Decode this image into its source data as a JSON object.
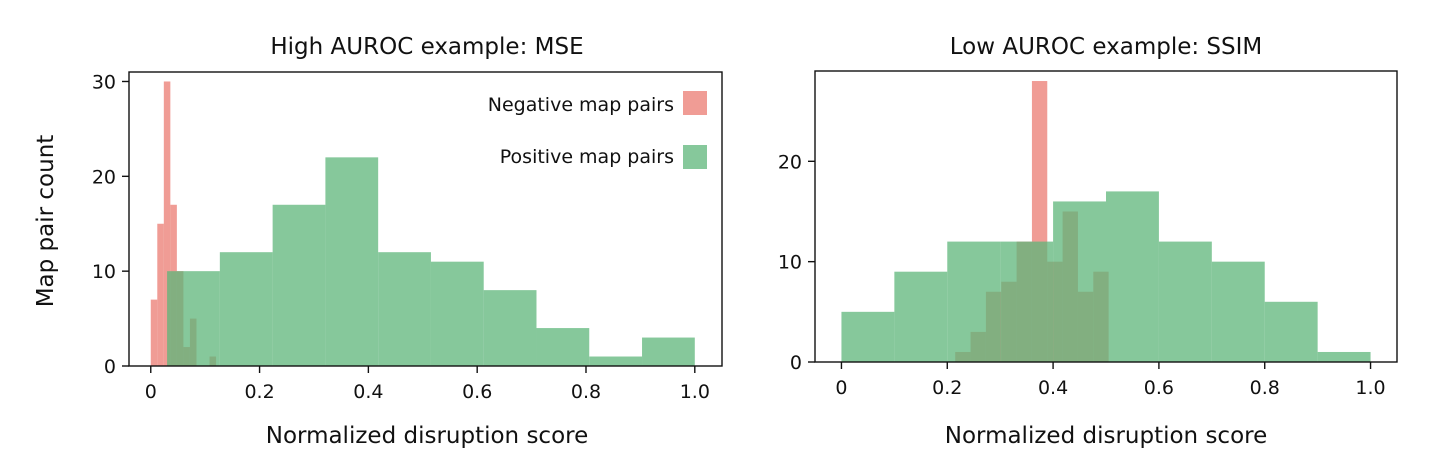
{
  "colors": {
    "negative": "#EB7B72",
    "positive": "#5DB57A"
  },
  "chart_data": [
    {
      "type": "histogram",
      "title": "High AUROC example: MSE",
      "xlabel": "Normalized disruption score",
      "ylabel": "Map pair count",
      "xlim": [
        -0.04,
        1.05
      ],
      "ylim": [
        0,
        31
      ],
      "xticks": [
        0,
        0.2,
        0.4,
        0.6,
        0.8,
        1.0
      ],
      "xtick_labels": [
        "0",
        "0.2",
        "0.4",
        "0.6",
        "0.8",
        "1.0"
      ],
      "yticks": [
        0,
        10,
        20,
        30
      ],
      "ytick_labels": [
        "0",
        "10",
        "20",
        "30"
      ],
      "legend": {
        "position": "top-right"
      },
      "series": [
        {
          "name": "Negative map pairs",
          "color_key": "negative",
          "bins": [
            {
              "x0": 0.0,
              "x1": 0.012,
              "y": 7
            },
            {
              "x0": 0.012,
              "x1": 0.024,
              "y": 15
            },
            {
              "x0": 0.024,
              "x1": 0.036,
              "y": 30
            },
            {
              "x0": 0.036,
              "x1": 0.048,
              "y": 17
            },
            {
              "x0": 0.048,
              "x1": 0.06,
              "y": 10
            },
            {
              "x0": 0.06,
              "x1": 0.072,
              "y": 2
            },
            {
              "x0": 0.072,
              "x1": 0.084,
              "y": 5
            },
            {
              "x0": 0.084,
              "x1": 0.096,
              "y": 0
            },
            {
              "x0": 0.096,
              "x1": 0.108,
              "y": 0
            },
            {
              "x0": 0.108,
              "x1": 0.12,
              "y": 1
            }
          ]
        },
        {
          "name": "Positive map pairs",
          "color_key": "positive",
          "bins": [
            {
              "x0": 0.03,
              "x1": 0.127,
              "y": 10
            },
            {
              "x0": 0.127,
              "x1": 0.224,
              "y": 12
            },
            {
              "x0": 0.224,
              "x1": 0.321,
              "y": 17
            },
            {
              "x0": 0.321,
              "x1": 0.418,
              "y": 22
            },
            {
              "x0": 0.418,
              "x1": 0.515,
              "y": 12
            },
            {
              "x0": 0.515,
              "x1": 0.612,
              "y": 11
            },
            {
              "x0": 0.612,
              "x1": 0.709,
              "y": 8
            },
            {
              "x0": 0.709,
              "x1": 0.806,
              "y": 4
            },
            {
              "x0": 0.806,
              "x1": 0.903,
              "y": 1
            },
            {
              "x0": 0.903,
              "x1": 1.0,
              "y": 3
            }
          ]
        }
      ]
    },
    {
      "type": "histogram",
      "title": "Low AUROC example: SSIM",
      "xlabel": "Normalized disruption score",
      "ylabel": "",
      "xlim": [
        -0.05,
        1.05
      ],
      "ylim": [
        0,
        29
      ],
      "xticks": [
        0,
        0.2,
        0.4,
        0.6,
        0.8,
        1.0
      ],
      "xtick_labels": [
        "0",
        "0.2",
        "0.4",
        "0.6",
        "0.8",
        "1.0"
      ],
      "yticks": [
        0,
        10,
        20
      ],
      "ytick_labels": [
        "0",
        "10",
        "20"
      ],
      "series": [
        {
          "name": "Negative map pairs",
          "color_key": "negative",
          "bins": [
            {
              "x0": 0.215,
              "x1": 0.244,
              "y": 1
            },
            {
              "x0": 0.244,
              "x1": 0.273,
              "y": 3
            },
            {
              "x0": 0.273,
              "x1": 0.302,
              "y": 7
            },
            {
              "x0": 0.302,
              "x1": 0.331,
              "y": 8
            },
            {
              "x0": 0.331,
              "x1": 0.36,
              "y": 12
            },
            {
              "x0": 0.36,
              "x1": 0.389,
              "y": 28
            },
            {
              "x0": 0.389,
              "x1": 0.418,
              "y": 10
            },
            {
              "x0": 0.418,
              "x1": 0.447,
              "y": 15
            },
            {
              "x0": 0.447,
              "x1": 0.476,
              "y": 7
            },
            {
              "x0": 0.476,
              "x1": 0.505,
              "y": 9
            }
          ]
        },
        {
          "name": "Positive map pairs",
          "color_key": "positive",
          "bins": [
            {
              "x0": 0.0,
              "x1": 0.1,
              "y": 5
            },
            {
              "x0": 0.1,
              "x1": 0.2,
              "y": 9
            },
            {
              "x0": 0.2,
              "x1": 0.3,
              "y": 12
            },
            {
              "x0": 0.3,
              "x1": 0.4,
              "y": 12
            },
            {
              "x0": 0.4,
              "x1": 0.5,
              "y": 16
            },
            {
              "x0": 0.5,
              "x1": 0.6,
              "y": 17
            },
            {
              "x0": 0.6,
              "x1": 0.7,
              "y": 12
            },
            {
              "x0": 0.7,
              "x1": 0.8,
              "y": 10
            },
            {
              "x0": 0.8,
              "x1": 0.9,
              "y": 6
            },
            {
              "x0": 0.9,
              "x1": 1.0,
              "y": 1
            }
          ]
        }
      ]
    }
  ]
}
